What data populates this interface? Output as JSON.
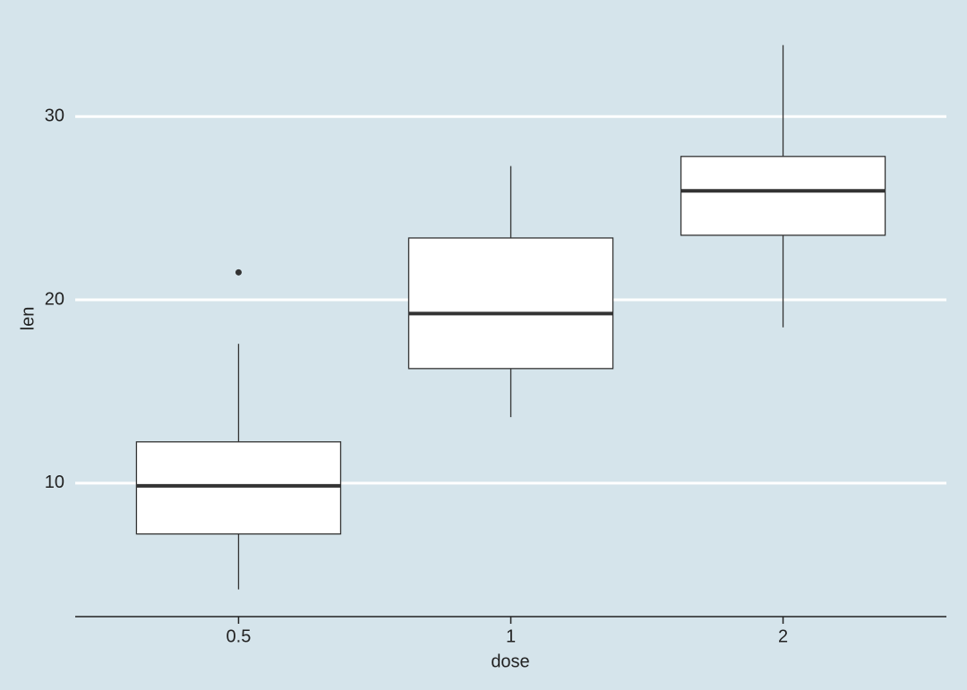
{
  "chart_data": {
    "type": "box",
    "x_label": "dose",
    "y_label": "len",
    "categories": [
      "0.5",
      "1",
      "2"
    ],
    "min": [
      4.2,
      13.6,
      18.5
    ],
    "q1": [
      7.225,
      16.25,
      23.525
    ],
    "median": [
      9.85,
      19.25,
      25.95
    ],
    "q3": [
      12.25,
      23.375,
      27.825
    ],
    "max": [
      17.6,
      27.3,
      33.9
    ],
    "outliers": [
      [
        21.5
      ],
      [],
      []
    ],
    "ylim": [
      2.715,
      35.385
    ],
    "yticks": [
      10,
      20,
      30
    ],
    "grid": true,
    "box_color": "#ffffff",
    "line_color": "#333333",
    "grid_color": "#ffffff"
  }
}
